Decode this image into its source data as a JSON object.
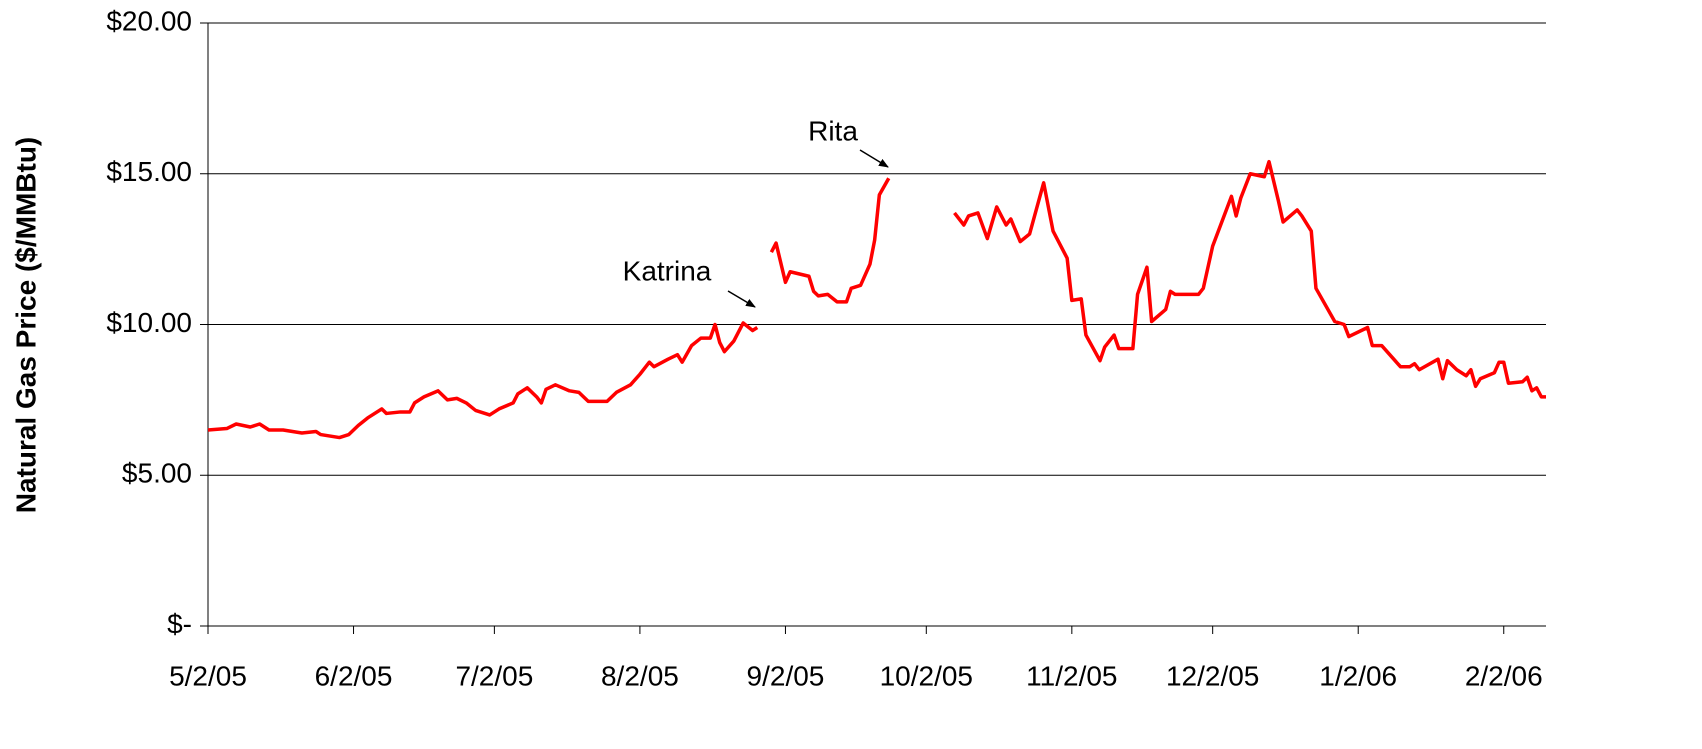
{
  "chart_data": {
    "type": "line",
    "y_label": "Natural Gas Price ($/MMBtu)",
    "annotations": [
      "Katrina",
      "Rita"
    ],
    "xlim": [
      "2005-05-02",
      "2006-02-11"
    ],
    "xticks": [
      {
        "value": "2005-05-02",
        "label": "5/2/05"
      },
      {
        "value": "2005-06-02",
        "label": "6/2/05"
      },
      {
        "value": "2005-07-02",
        "label": "7/2/05"
      },
      {
        "value": "2005-08-02",
        "label": "8/2/05"
      },
      {
        "value": "2005-09-02",
        "label": "9/2/05"
      },
      {
        "value": "2005-10-02",
        "label": "10/2/05"
      },
      {
        "value": "2005-11-02",
        "label": "11/2/05"
      },
      {
        "value": "2005-12-02",
        "label": "12/2/05"
      },
      {
        "value": "2006-01-02",
        "label": "1/2/06"
      },
      {
        "value": "2006-02-02",
        "label": "2/2/06"
      }
    ],
    "ylim": [
      0,
      20
    ],
    "yticks": [
      {
        "value": 0,
        "label": "$-"
      },
      {
        "value": 5,
        "label": "$5.00"
      },
      {
        "value": 10,
        "label": "$10.00"
      },
      {
        "value": 15,
        "label": "$15.00"
      },
      {
        "value": 20,
        "label": "$20.00"
      }
    ],
    "grid": true,
    "x": [
      "2005-05-02",
      "2005-05-06",
      "2005-05-08",
      "2005-05-11",
      "2005-05-13",
      "2005-05-15",
      "2005-05-18",
      "2005-05-20",
      "2005-05-22",
      "2005-05-25",
      "2005-05-26",
      "2005-05-30",
      "2005-06-01",
      "2005-06-03",
      "2005-06-05",
      "2005-06-08",
      "2005-06-09",
      "2005-06-12",
      "2005-06-14",
      "2005-06-15",
      "2005-06-17",
      "2005-06-20",
      "2005-06-22",
      "2005-06-24",
      "2005-06-26",
      "2005-06-28",
      "2005-07-01",
      "2005-07-03",
      "2005-07-06",
      "2005-07-07",
      "2005-07-09",
      "2005-07-11",
      "2005-07-12",
      "2005-07-13",
      "2005-07-15",
      "2005-07-18",
      "2005-07-20",
      "2005-07-22",
      "2005-07-26",
      "2005-07-28",
      "2005-07-31",
      "2005-08-02",
      "2005-08-04",
      "2005-08-05",
      "2005-08-08",
      "2005-08-10",
      "2005-08-11",
      "2005-08-13",
      "2005-08-15",
      "2005-08-17",
      "2005-08-18",
      "2005-08-19",
      "2005-08-20",
      "2005-08-22",
      "2005-08-24",
      "2005-08-26",
      "2005-08-27",
      "2005-08-29",
      "2005-08-30",
      "2005-08-31",
      "2005-09-02",
      "2005-09-03",
      "2005-09-07",
      "2005-09-08",
      "2005-09-09",
      "2005-09-11",
      "2005-09-13",
      "2005-09-15",
      "2005-09-16",
      "2005-09-18",
      "2005-09-20",
      "2005-09-21",
      "2005-09-22",
      "2005-09-24",
      "2005-10-01",
      "2005-10-08",
      "2005-10-10",
      "2005-10-11",
      "2005-10-13",
      "2005-10-15",
      "2005-10-17",
      "2005-10-19",
      "2005-10-20",
      "2005-10-22",
      "2005-10-24",
      "2005-10-27",
      "2005-10-29",
      "2005-11-01",
      "2005-11-02",
      "2005-11-04",
      "2005-11-05",
      "2005-11-08",
      "2005-11-09",
      "2005-11-11",
      "2005-11-12",
      "2005-11-15",
      "2005-11-16",
      "2005-11-18",
      "2005-11-19",
      "2005-11-22",
      "2005-11-23",
      "2005-11-24",
      "2005-11-29",
      "2005-11-30",
      "2005-12-02",
      "2005-12-06",
      "2005-12-07",
      "2005-12-08",
      "2005-12-10",
      "2005-12-13",
      "2005-12-14",
      "2005-12-16",
      "2005-12-17",
      "2005-12-20",
      "2005-12-21",
      "2005-12-23",
      "2005-12-24",
      "2005-12-28",
      "2005-12-30",
      "2005-12-31",
      "2006-01-04",
      "2006-01-05",
      "2006-01-07",
      "2006-01-11",
      "2006-01-13",
      "2006-01-14",
      "2006-01-15",
      "2006-01-19",
      "2006-01-20",
      "2006-01-21",
      "2006-01-23",
      "2006-01-25",
      "2006-01-26",
      "2006-01-27",
      "2006-01-28",
      "2006-01-31",
      "2006-02-01",
      "2006-02-02",
      "2006-02-03",
      "2006-02-06",
      "2006-02-07",
      "2006-02-08",
      "2006-02-09",
      "2006-02-10",
      "2006-02-11"
    ],
    "series": [
      {
        "name": "Natural Gas Price",
        "color": "#ff0000",
        "values": [
          6.5,
          6.55,
          6.7,
          6.6,
          6.7,
          6.5,
          6.5,
          6.45,
          6.4,
          6.45,
          6.35,
          6.25,
          6.35,
          6.65,
          6.9,
          7.2,
          7.05,
          7.1,
          7.1,
          7.4,
          7.6,
          7.8,
          7.5,
          7.55,
          7.4,
          7.15,
          7.0,
          7.2,
          7.4,
          7.7,
          7.9,
          7.6,
          7.4,
          7.85,
          8.0,
          7.8,
          7.75,
          7.45,
          7.45,
          7.75,
          8.0,
          8.35,
          8.75,
          8.6,
          8.85,
          9.0,
          8.75,
          9.3,
          9.55,
          9.55,
          10.0,
          9.4,
          9.1,
          9.45,
          10.05,
          9.8,
          9.9,
          null,
          12.4,
          12.7,
          11.4,
          11.75,
          11.6,
          11.1,
          10.95,
          11.0,
          10.75,
          10.75,
          11.2,
          11.3,
          12.0,
          12.8,
          14.3,
          14.85,
          null,
          13.7,
          13.3,
          13.6,
          13.7,
          12.85,
          13.9,
          13.3,
          13.5,
          12.75,
          13.0,
          14.7,
          13.1,
          12.2,
          10.8,
          10.85,
          9.65,
          8.8,
          9.25,
          9.65,
          9.2,
          9.2,
          11.0,
          11.9,
          10.1,
          10.5,
          11.1,
          11.0,
          11.0,
          11.2,
          12.6,
          14.25,
          13.6,
          14.2,
          15.0,
          14.9,
          15.4,
          14.1,
          13.4,
          13.8,
          13.6,
          13.1,
          11.2,
          10.1,
          10.0,
          9.6,
          9.9,
          9.3,
          9.3,
          8.6,
          8.6,
          8.7,
          8.5,
          8.85,
          8.2,
          8.8,
          8.5,
          8.3,
          8.5,
          7.95,
          8.2,
          8.4,
          8.75,
          8.75,
          8.05,
          8.1,
          8.25,
          7.8,
          7.9,
          7.6,
          7.6
        ]
      }
    ]
  }
}
